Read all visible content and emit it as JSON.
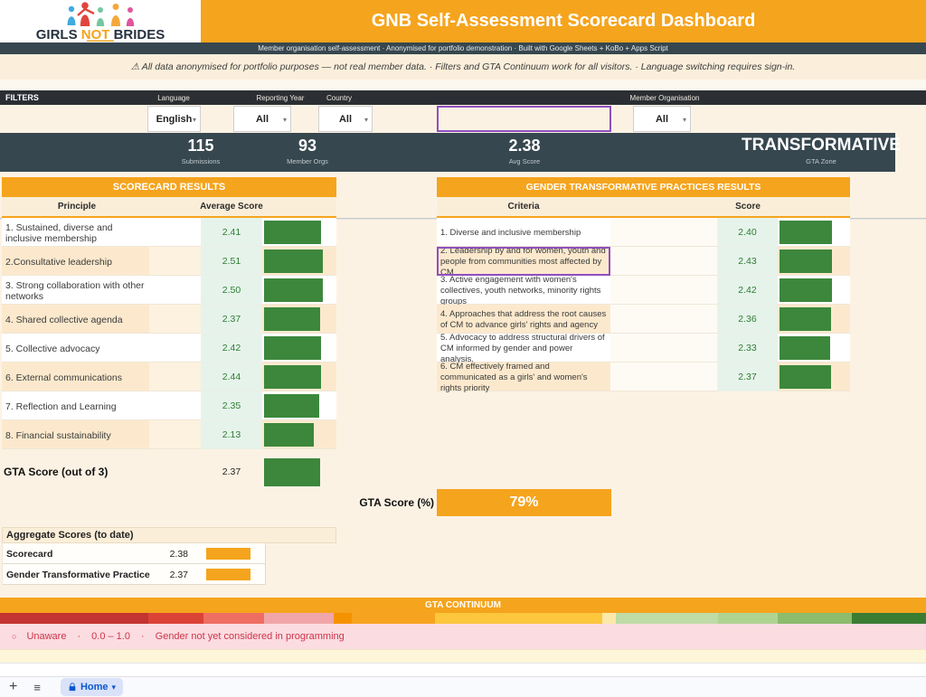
{
  "header": {
    "logo": {
      "word1": "GIRLS ",
      "word2": "NOT",
      "word3": " BRIDES"
    },
    "title": "GNB Self-Assessment Scorecard Dashboard"
  },
  "meta_bar": {
    "text": "Member organisation self-assessment  ·  Anonymised for portfolio demonstration  ·  Built with Google Sheets + KoBo + Apps Script"
  },
  "notice_bar": {
    "text": "⚠  All data anonymised for portfolio purposes — not real member data.  ·  Filters and GTA Continuum work for all visitors.  ·  Language switching requires sign-in."
  },
  "filters": {
    "title": "FILTERS",
    "caret": "▾",
    "language": {
      "label": "Language",
      "value": "English"
    },
    "reporting_year": {
      "label": "Reporting Year",
      "value": "All"
    },
    "country": {
      "label": "Country",
      "value": "All"
    },
    "member_org": {
      "label": "Member Organisation",
      "value": "All"
    }
  },
  "kpis": [
    {
      "value": "115",
      "label": "Submissions"
    },
    {
      "value": "93",
      "label": "Member Orgs"
    },
    {
      "value": "2.38",
      "label": "Avg Score"
    },
    {
      "value": "TRANSFORMATIVE",
      "label": "GTA Zone"
    }
  ],
  "scorecard": {
    "title": "SCORECARD RESULTS",
    "col_principle": "Principle",
    "col_score": "Average Score",
    "max_score": 3,
    "rows": [
      {
        "name": "1. Sustained, diverse and inclusive membership",
        "score": "2.41"
      },
      {
        "name": "2.Consultative leadership",
        "score": "2.51"
      },
      {
        "name": "3. Strong collaboration with other networks",
        "score": "2.50"
      },
      {
        "name": "4. Shared collective agenda",
        "score": "2.37"
      },
      {
        "name": "5. Collective advocacy",
        "score": "2.42"
      },
      {
        "name": "6. External communications",
        "score": "2.44"
      },
      {
        "name": "7. Reflection and Learning",
        "score": "2.35"
      },
      {
        "name": "8. Financial sustainability",
        "score": "2.13"
      }
    ],
    "gta_row": {
      "label": "GTA Score (out of 3)",
      "score": "2.37"
    }
  },
  "practices": {
    "title": "GENDER TRANSFORMATIVE PRACTICES RESULTS",
    "col_criteria": "Criteria",
    "col_score": "Score",
    "max_score": 3,
    "rows": [
      {
        "name": "1. Diverse and inclusive membership",
        "score": "2.40",
        "selected": false
      },
      {
        "name": "2. Leadership by and for women, youth and people from communities most affected by CM",
        "score": "2.43",
        "selected": true
      },
      {
        "name": "3. Active engagement with women's collectives, youth networks, minority rights groups",
        "score": "2.42",
        "selected": false
      },
      {
        "name": "4. Approaches that address the root causes of CM to advance girls' rights and agency",
        "score": "2.36",
        "selected": false
      },
      {
        "name": "5. Advocacy to address structural drivers of CM informed by gender and power analysis.",
        "score": "2.33",
        "selected": false
      },
      {
        "name": "6. CM effectively framed and communicated as a girls' and women's rights priority",
        "score": "2.37",
        "selected": false
      }
    ],
    "gta_percent": {
      "label": "GTA Score (%)",
      "value": "79%"
    }
  },
  "aggregate": {
    "title": "Aggregate Scores (to date)",
    "max_score": 3,
    "rows": [
      {
        "label": "Scorecard",
        "score": "2.38"
      },
      {
        "label": "Gender Transformative Practice",
        "score": "2.37"
      }
    ]
  },
  "continuum": {
    "title": "GTA CONTINUUM",
    "segments": [
      {
        "color": "#C43430",
        "width": 16
      },
      {
        "color": "#DC4337",
        "width": 6
      },
      {
        "color": "#EE6E62",
        "width": 6.5
      },
      {
        "color": "#F0A6A8",
        "width": 7.5
      },
      {
        "color": "#F59200",
        "width": 2
      },
      {
        "color": "#F6A41F",
        "width": 9
      },
      {
        "color": "#FCC63D",
        "width": 18
      },
      {
        "color": "#FBE9A9",
        "width": 1.5
      },
      {
        "color": "#BFDCA6",
        "width": 11
      },
      {
        "color": "#AFD492",
        "width": 6.5
      },
      {
        "color": "#8CBC6C",
        "width": 8
      },
      {
        "color": "#3A7D33",
        "width": 8
      }
    ],
    "legend": {
      "symbol": "○",
      "zone": "Unaware",
      "sep1": "·",
      "range": "0.0 – 1.0",
      "sep2": "·",
      "desc": "Gender not yet considered in programming"
    }
  },
  "sheet_bar": {
    "add": "+",
    "menu": "≡",
    "tab": "Home",
    "caret": "▾"
  },
  "colors": {
    "accent_orange": "#F5A41D",
    "dark_slate": "#37474F",
    "bar_green": "#3C873C",
    "score_text_green": "#2E7D32",
    "selection_purple": "#8F4FBF",
    "tab_blue": "#0B57D0",
    "legend_red": "#CE3549"
  }
}
